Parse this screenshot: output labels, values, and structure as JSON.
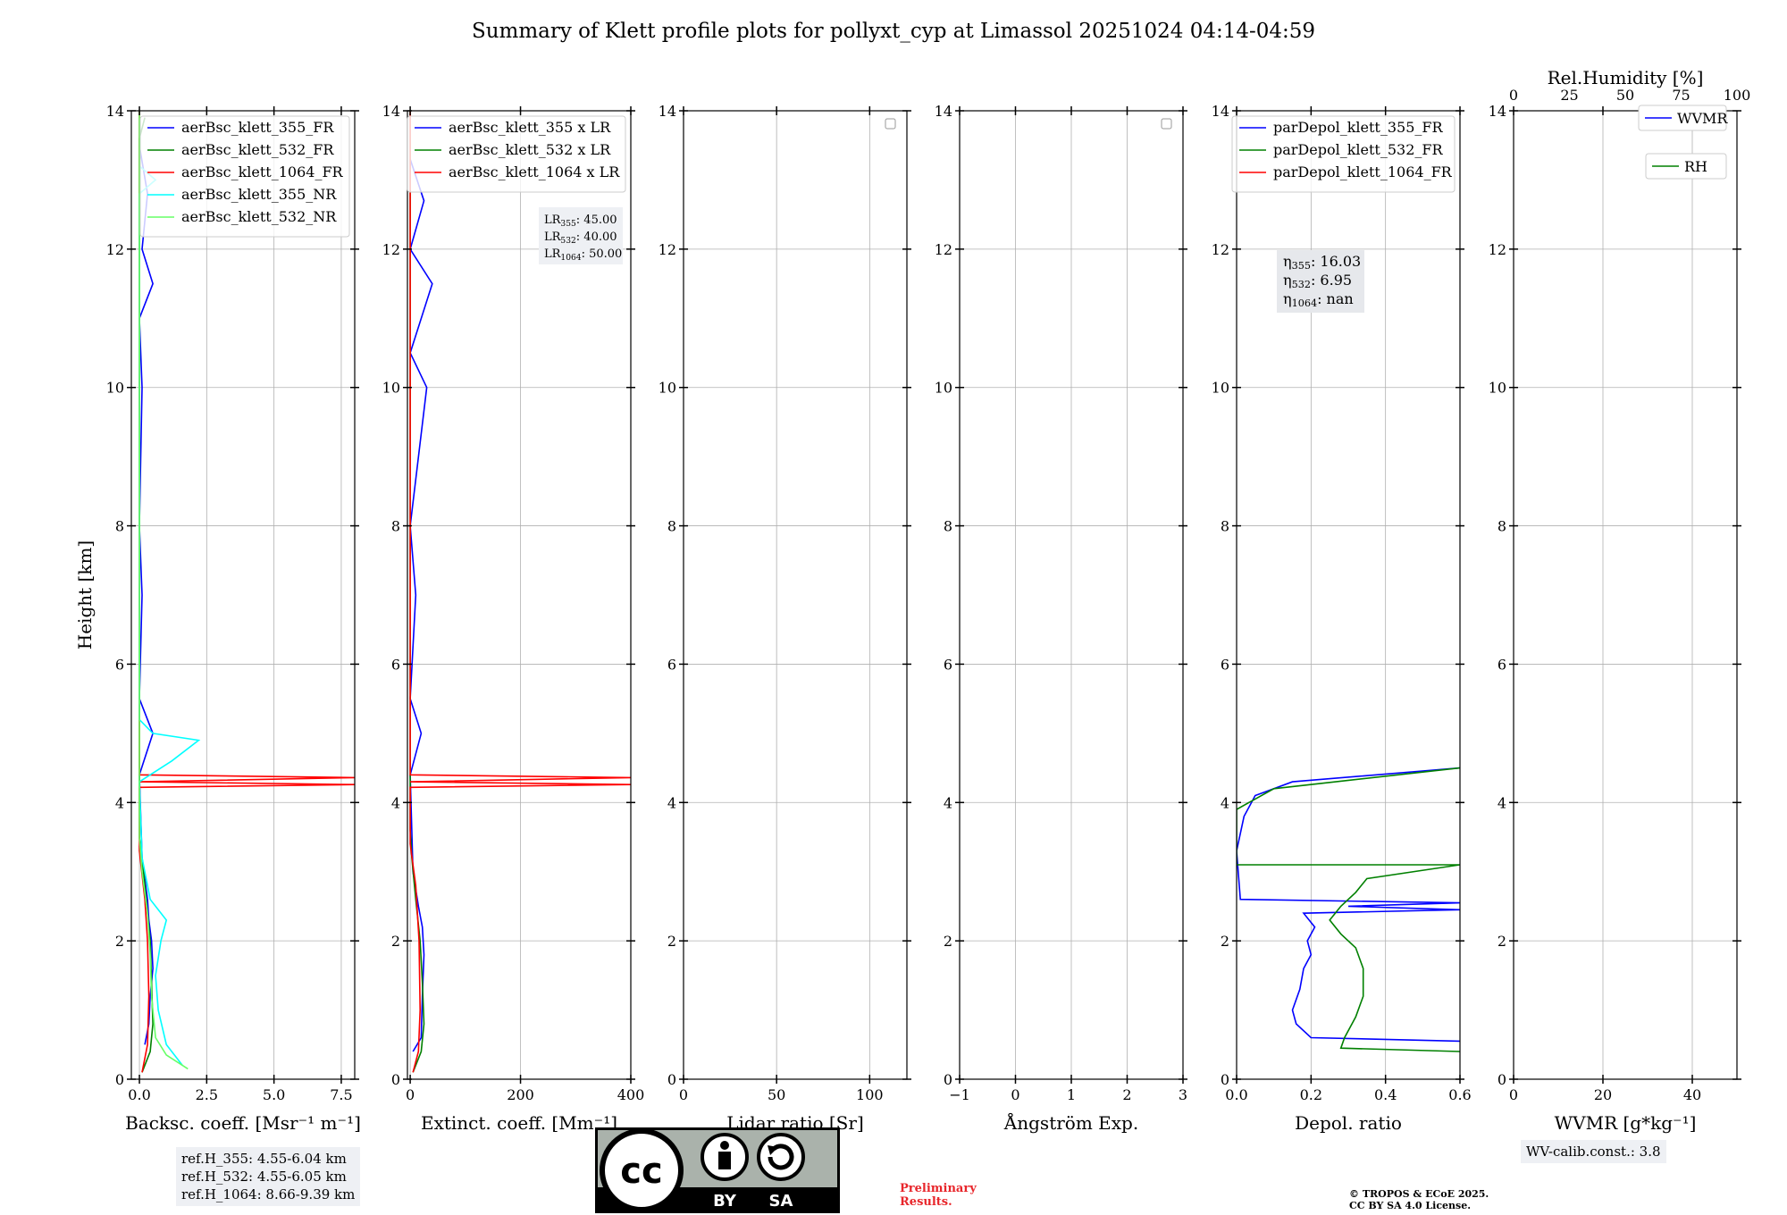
{
  "title": "Summary of Klett profile plots for pollyxt_cyp at Limassol 20251024 04:14-04:59",
  "colors": {
    "b355": "#0000ff",
    "g532": "#008000",
    "r1064": "#ff0000",
    "c355nr": "#00ffff",
    "g532nr": "#66ff66",
    "rh": "#008000"
  },
  "chart_data": [
    {
      "type": "line",
      "id": "bsc",
      "xlabel": "Backsc. coeff. [Msr⁻¹ m⁻¹]",
      "ylabel": "Height [km]",
      "xlim": [
        -0.3,
        8.0
      ],
      "ylim": [
        0,
        14
      ],
      "xticks": [
        0,
        2.5,
        5.0,
        7.5
      ],
      "xtick_labels": [
        "0.0",
        "2.5",
        "5.0",
        "7.5"
      ],
      "yticks": [
        0,
        2,
        4,
        6,
        8,
        10,
        12,
        14
      ],
      "grid": true,
      "legend": [
        "aerBsc_klett_355_FR",
        "aerBsc_klett_532_FR",
        "aerBsc_klett_1064_FR",
        "aerBsc_klett_355_NR",
        "aerBsc_klett_532_NR"
      ],
      "legend_position": "top-right",
      "series": [
        {
          "name": "aerBsc_klett_355_FR",
          "color": "#0000ff",
          "points": [
            [
              0.2,
              0.5
            ],
            [
              0.35,
              0.8
            ],
            [
              0.4,
              1.2
            ],
            [
              0.5,
              1.6
            ],
            [
              0.45,
              2.0
            ],
            [
              0.35,
              2.3
            ],
            [
              0.3,
              2.6
            ],
            [
              0.1,
              3.2
            ],
            [
              0,
              4.4
            ],
            [
              0.5,
              5.0
            ],
            [
              0,
              5.5
            ],
            [
              0.1,
              7.0
            ],
            [
              0,
              8.0
            ],
            [
              0.1,
              10.0
            ],
            [
              0,
              11.0
            ],
            [
              0.5,
              11.5
            ],
            [
              0.1,
              12.0
            ],
            [
              0.3,
              12.8
            ],
            [
              0,
              13.5
            ]
          ]
        },
        {
          "name": "aerBsc_klett_532_FR",
          "color": "#008000",
          "points": [
            [
              0.1,
              0.1
            ],
            [
              0.4,
              0.4
            ],
            [
              0.5,
              0.8
            ],
            [
              0.45,
              1.4
            ],
            [
              0.4,
              2.0
            ],
            [
              0.3,
              2.4
            ],
            [
              0.15,
              3.0
            ],
            [
              0,
              3.5
            ],
            [
              0,
              13.6
            ],
            [
              0.2,
              13.9
            ]
          ]
        },
        {
          "name": "aerBsc_klett_1064_FR",
          "color": "#ff0000",
          "points": [
            [
              0.1,
              0.1
            ],
            [
              0.3,
              0.5
            ],
            [
              0.35,
              1.2
            ],
            [
              0.3,
              2.0
            ],
            [
              0.2,
              2.6
            ],
            [
              0,
              3.3
            ],
            [
              0,
              4.22
            ],
            [
              8.0,
              4.26
            ],
            [
              0,
              4.3
            ],
            [
              8.0,
              4.36
            ],
            [
              0,
              4.4
            ],
            [
              0,
              14
            ]
          ]
        },
        {
          "name": "aerBsc_klett_355_NR",
          "color": "#00ffff",
          "points": [
            [
              1.6,
              0.2
            ],
            [
              1.0,
              0.5
            ],
            [
              0.7,
              1.0
            ],
            [
              0.6,
              1.5
            ],
            [
              0.8,
              2.0
            ],
            [
              1.0,
              2.3
            ],
            [
              0.4,
              2.6
            ],
            [
              0.1,
              3.2
            ],
            [
              0,
              4.3
            ],
            [
              1.2,
              4.6
            ],
            [
              2.2,
              4.9
            ],
            [
              0.5,
              5.0
            ],
            [
              0,
              5.2
            ],
            [
              0,
              12.8
            ],
            [
              0.6,
              13.0
            ],
            [
              0,
              13.2
            ]
          ]
        },
        {
          "name": "aerBsc_klett_532_NR",
          "color": "#66ff66",
          "points": [
            [
              1.8,
              0.15
            ],
            [
              1.0,
              0.35
            ],
            [
              0.6,
              0.6
            ],
            [
              0.45,
              1.2
            ],
            [
              0.4,
              1.8
            ],
            [
              0.3,
              2.4
            ],
            [
              0.1,
              3.0
            ],
            [
              0,
              3.5
            ],
            [
              0,
              14
            ]
          ]
        }
      ]
    },
    {
      "type": "line",
      "id": "ext",
      "xlabel": "Extinct. coeff. [Mm⁻¹]",
      "xlim": [
        -5,
        400
      ],
      "ylim": [
        0,
        14
      ],
      "xticks": [
        0,
        200,
        400
      ],
      "xtick_labels": [
        "0",
        "200",
        "400"
      ],
      "yticks": [
        0,
        2,
        4,
        6,
        8,
        10,
        12,
        14
      ],
      "grid": true,
      "legend": [
        "aerBsc_klett_355 x LR",
        "aerBsc_klett_532 x LR",
        "aerBsc_klett_1064 x LR"
      ],
      "legend_position": "top-right",
      "annotation": [
        {
          "label": "LR",
          "sub": "355",
          "value": ": 45.00"
        },
        {
          "label": "LR",
          "sub": "532",
          "value": ": 40.00"
        },
        {
          "label": "LR",
          "sub": "1064",
          "value": ": 50.00"
        }
      ],
      "series": [
        {
          "name": "aerBsc_klett_355 x LR",
          "color": "#0000ff",
          "points": [
            [
              5,
              0.4
            ],
            [
              20,
              0.6
            ],
            [
              22,
              1.2
            ],
            [
              25,
              1.8
            ],
            [
              22,
              2.2
            ],
            [
              15,
              2.5
            ],
            [
              5,
              3.0
            ],
            [
              0,
              4.4
            ],
            [
              20,
              5.0
            ],
            [
              0,
              5.5
            ],
            [
              10,
              7.0
            ],
            [
              0,
              8.0
            ],
            [
              30,
              10.0
            ],
            [
              0,
              10.5
            ],
            [
              40,
              11.5
            ],
            [
              0,
              12.0
            ],
            [
              25,
              12.7
            ],
            [
              0,
              13.3
            ]
          ]
        },
        {
          "name": "aerBsc_klett_532 x LR",
          "color": "#008000",
          "points": [
            [
              5,
              0.1
            ],
            [
              20,
              0.4
            ],
            [
              25,
              0.8
            ],
            [
              22,
              1.4
            ],
            [
              18,
              2.0
            ],
            [
              10,
              2.6
            ],
            [
              3,
              3.2
            ],
            [
              0,
              3.6
            ],
            [
              0,
              14
            ]
          ]
        },
        {
          "name": "aerBsc_klett_1064 x LR",
          "color": "#ff0000",
          "points": [
            [
              5,
              0.1
            ],
            [
              15,
              0.4
            ],
            [
              18,
              1.0
            ],
            [
              16,
              2.0
            ],
            [
              10,
              2.8
            ],
            [
              0,
              3.4
            ],
            [
              0,
              4.22
            ],
            [
              400,
              4.26
            ],
            [
              0,
              4.3
            ],
            [
              400,
              4.36
            ],
            [
              0,
              4.4
            ],
            [
              0,
              14
            ]
          ]
        }
      ]
    },
    {
      "type": "line",
      "id": "lr",
      "xlabel": "Lidar ratio [Sr]",
      "xlim": [
        0,
        120
      ],
      "ylim": [
        0,
        14
      ],
      "xticks": [
        0,
        50,
        100
      ],
      "xtick_labels": [
        "0",
        "50",
        "100"
      ],
      "yticks": [
        0,
        2,
        4,
        6,
        8,
        10,
        12,
        14
      ],
      "grid": true,
      "empty_legend": true,
      "series": []
    },
    {
      "type": "line",
      "id": "ang",
      "xlabel": "Ångström Exp.",
      "xlim": [
        -1,
        3
      ],
      "ylim": [
        0,
        14
      ],
      "xticks": [
        -1,
        0,
        1,
        2,
        3
      ],
      "xtick_labels": [
        "−1",
        "0",
        "1",
        "2",
        "3"
      ],
      "yticks": [
        0,
        2,
        4,
        6,
        8,
        10,
        12,
        14
      ],
      "grid": true,
      "empty_legend": true,
      "series": []
    },
    {
      "type": "line",
      "id": "depol",
      "xlabel": "Depol. ratio",
      "xlim": [
        0,
        0.6
      ],
      "ylim": [
        0,
        14
      ],
      "xticks": [
        0,
        0.2,
        0.4,
        0.6
      ],
      "xtick_labels": [
        "0.0",
        "0.2",
        "0.4",
        "0.6"
      ],
      "yticks": [
        0,
        2,
        4,
        6,
        8,
        10,
        12,
        14
      ],
      "grid": true,
      "legend": [
        "parDepol_klett_355_FR",
        "parDepol_klett_532_FR",
        "parDepol_klett_1064_FR"
      ],
      "legend_position": "top-right",
      "annotation": [
        {
          "label": "η",
          "sub": "355",
          "value": ": 16.03"
        },
        {
          "label": "η",
          "sub": "532",
          "value": ": 6.95"
        },
        {
          "label": "η",
          "sub": "1064",
          "value": ": nan"
        }
      ],
      "series": [
        {
          "name": "parDepol_klett_355_FR",
          "color": "#0000ff",
          "points": [
            [
              0.6,
              0.55
            ],
            [
              0.2,
              0.6
            ],
            [
              0.16,
              0.8
            ],
            [
              0.15,
              1.0
            ],
            [
              0.17,
              1.3
            ],
            [
              0.18,
              1.6
            ],
            [
              0.2,
              1.8
            ],
            [
              0.19,
              2.0
            ],
            [
              0.21,
              2.2
            ],
            [
              0.18,
              2.4
            ],
            [
              0.6,
              2.45
            ],
            [
              0.3,
              2.5
            ],
            [
              0.6,
              2.55
            ],
            [
              0.01,
              2.6
            ],
            [
              0,
              3.3
            ],
            [
              0.02,
              3.8
            ],
            [
              0.05,
              4.1
            ],
            [
              0.15,
              4.3
            ],
            [
              0.6,
              4.5
            ]
          ]
        },
        {
          "name": "parDepol_klett_532_FR",
          "color": "#008000",
          "points": [
            [
              0.6,
              0.4
            ],
            [
              0.28,
              0.45
            ],
            [
              0.29,
              0.6
            ],
            [
              0.32,
              0.9
            ],
            [
              0.34,
              1.2
            ],
            [
              0.34,
              1.6
            ],
            [
              0.32,
              1.9
            ],
            [
              0.28,
              2.1
            ],
            [
              0.25,
              2.3
            ],
            [
              0.28,
              2.5
            ],
            [
              0.32,
              2.7
            ],
            [
              0.35,
              2.9
            ],
            [
              0.6,
              3.1
            ],
            [
              0,
              3.1
            ],
            [
              0,
              3.9
            ],
            [
              0.1,
              4.2
            ],
            [
              0.6,
              4.5
            ]
          ]
        }
      ]
    },
    {
      "type": "line",
      "id": "wv",
      "xlabel": "WVMR [g*kg⁻¹]",
      "top_xlabel": "Rel.Humidity [%]",
      "xlim": [
        0,
        50
      ],
      "top_xlim": [
        0,
        100
      ],
      "ylim": [
        0,
        14
      ],
      "xticks": [
        0,
        20,
        40
      ],
      "xtick_labels": [
        "0",
        "20",
        "40"
      ],
      "top_xticks": [
        0,
        25,
        50,
        75,
        100
      ],
      "top_xtick_labels": [
        "0",
        "25",
        "50",
        "75",
        "100"
      ],
      "yticks": [
        0,
        2,
        4,
        6,
        8,
        10,
        12,
        14
      ],
      "grid": true,
      "legend": [
        "WVMR",
        "RH"
      ],
      "series": []
    }
  ],
  "ref_heights": [
    "ref.H_355: 4.55-6.04 km",
    "ref.H_532: 4.55-6.05 km",
    "ref.H_1064: 8.66-9.39 km"
  ],
  "wv_calib": "WV-calib.const.: 3.8",
  "license_badge": {
    "left": "BY",
    "right": "SA",
    "logo": "cc"
  },
  "preliminary": [
    "Preliminary",
    "Results."
  ],
  "copyright": [
    "© TROPOS & ECoE 2025.",
    "CC BY SA 4.0 License."
  ]
}
